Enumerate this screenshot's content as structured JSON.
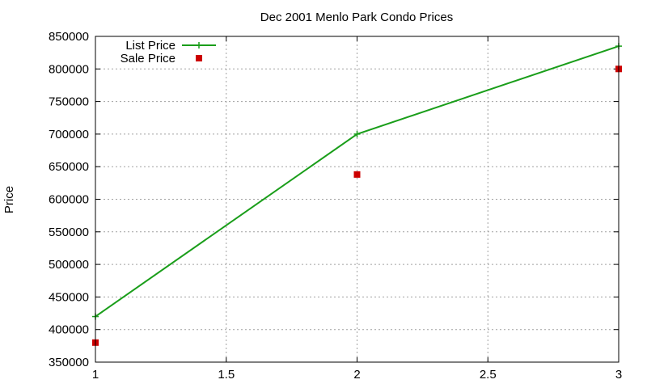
{
  "chart_data": {
    "type": "line",
    "title": "Dec 2001 Menlo Park Condo Prices",
    "xlabel": "",
    "ylabel": "Price",
    "xlim": [
      1,
      3
    ],
    "ylim": [
      350000,
      850000
    ],
    "x_ticks": [
      "1",
      "1.5",
      "2",
      "2.5",
      "3"
    ],
    "y_ticks": [
      "350000",
      "400000",
      "450000",
      "500000",
      "550000",
      "600000",
      "650000",
      "700000",
      "750000",
      "800000",
      "850000"
    ],
    "grid": true,
    "legend_position": "top-left",
    "series": [
      {
        "name": "List Price",
        "style": "linespoints",
        "color": "#1a9e1a",
        "x": [
          1,
          2,
          3
        ],
        "y": [
          420000,
          700000,
          835000
        ]
      },
      {
        "name": "Sale Price",
        "style": "points",
        "color": "#cc0000",
        "x": [
          1,
          2,
          3
        ],
        "y": [
          380000,
          638000,
          800000
        ]
      }
    ]
  }
}
